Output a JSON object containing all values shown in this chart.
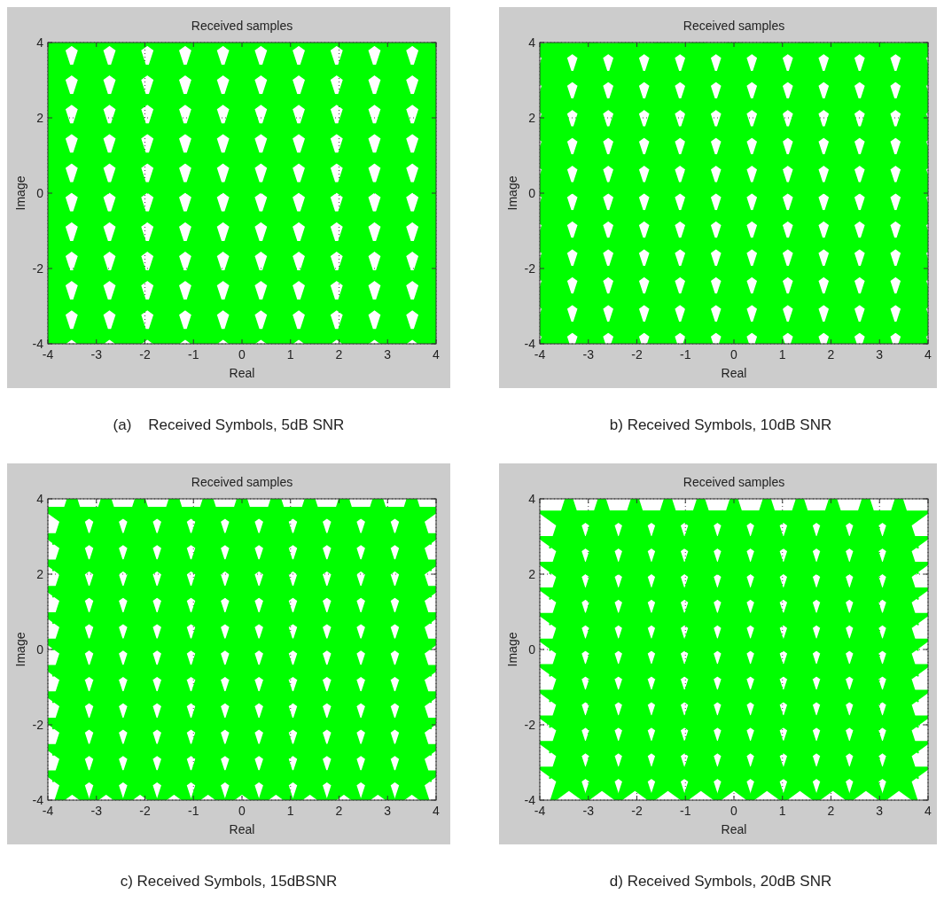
{
  "chart_data": [
    {
      "type": "scatter",
      "title": "Received samples",
      "xlabel": "Real",
      "ylabel": "Image",
      "xlim": [
        -4,
        4
      ],
      "ylim": [
        -4,
        4
      ],
      "xticks": [
        -4,
        -3,
        -2,
        -1,
        0,
        1,
        2,
        3,
        4
      ],
      "yticks": [
        -4,
        -2,
        0,
        2,
        4
      ],
      "grid": true,
      "marker": "star",
      "annotations": [
        "(a)    Received Symbols, 5dB SNR"
      ],
      "series": [
        {
          "color": "#00ff00",
          "x": [
            -3.9,
            -3.12,
            -2.34,
            -1.56,
            -0.78,
            0,
            0.78,
            1.56,
            2.34,
            3.12,
            3.9,
            -3.9,
            -3.12,
            -2.34,
            -1.56,
            -0.78,
            0,
            0.78,
            1.56,
            2.34,
            3.12,
            3.9,
            -3.9,
            -3.12,
            -2.34,
            -1.56,
            -0.78,
            0,
            0.78,
            1.56,
            2.34,
            3.12,
            3.9,
            -3.9,
            -3.12,
            -2.34,
            -1.56,
            -0.78,
            0,
            0.78,
            1.56,
            2.34,
            3.12,
            3.9,
            -3.9,
            -3.12,
            -2.34,
            -1.56,
            -0.78,
            0,
            0.78,
            1.56,
            2.34,
            3.12,
            3.9,
            -3.9,
            -3.12,
            -2.34,
            -1.56,
            -0.78,
            0,
            0.78,
            1.56,
            2.34,
            3.12,
            3.9,
            -3.9,
            -3.12,
            -2.34,
            -1.56,
            -0.78,
            0,
            0.78,
            1.56,
            2.34,
            3.12,
            3.9,
            -3.9,
            -3.12,
            -2.34,
            -1.56,
            -0.78,
            0,
            0.78,
            1.56,
            2.34,
            3.12,
            3.9,
            -3.9,
            -3.12,
            -2.34,
            -1.56,
            -0.78,
            0,
            0.78,
            1.56,
            2.34,
            3.12,
            3.9,
            -3.9,
            -3.12,
            -2.34,
            -1.56,
            -0.78,
            0,
            0.78,
            1.56,
            2.34,
            3.12,
            3.9,
            -3.9,
            -3.12,
            -2.34,
            -1.56,
            -0.78,
            0,
            0.78,
            1.56,
            2.34,
            3.12,
            3.9
          ],
          "values": [
            -3.9,
            -3.9,
            -3.9,
            -3.9,
            -3.9,
            -3.9,
            -3.9,
            -3.9,
            -3.9,
            -3.9,
            -3.9,
            -3.12,
            -3.12,
            -3.12,
            -3.12,
            -3.12,
            -3.12,
            -3.12,
            -3.12,
            -3.12,
            -3.12,
            -3.12,
            -2.34,
            -2.34,
            -2.34,
            -2.34,
            -2.34,
            -2.34,
            -2.34,
            -2.34,
            -2.34,
            -2.34,
            -2.34,
            -1.56,
            -1.56,
            -1.56,
            -1.56,
            -1.56,
            -1.56,
            -1.56,
            -1.56,
            -1.56,
            -1.56,
            -1.56,
            -0.78,
            -0.78,
            -0.78,
            -0.78,
            -0.78,
            -0.78,
            -0.78,
            -0.78,
            -0.78,
            -0.78,
            -0.78,
            0,
            0,
            0,
            0,
            0,
            0,
            0,
            0,
            0,
            0,
            0,
            0.78,
            0.78,
            0.78,
            0.78,
            0.78,
            0.78,
            0.78,
            0.78,
            0.78,
            0.78,
            0.78,
            1.56,
            1.56,
            1.56,
            1.56,
            1.56,
            1.56,
            1.56,
            1.56,
            1.56,
            1.56,
            1.56,
            2.34,
            2.34,
            2.34,
            2.34,
            2.34,
            2.34,
            2.34,
            2.34,
            2.34,
            2.34,
            2.34,
            3.12,
            3.12,
            3.12,
            3.12,
            3.12,
            3.12,
            3.12,
            3.12,
            3.12,
            3.12,
            3.12,
            3.9,
            3.9,
            3.9,
            3.9,
            3.9,
            3.9,
            3.9,
            3.9,
            3.9,
            3.9,
            3.9
          ]
        }
      ]
    },
    {
      "type": "scatter",
      "title": "Received samples",
      "xlabel": "Real",
      "ylabel": "Image",
      "xlim": [
        -4,
        4
      ],
      "ylim": [
        -4,
        4
      ],
      "xticks": [
        -4,
        -3,
        -2,
        -1,
        0,
        1,
        2,
        3,
        4
      ],
      "yticks": [
        -4,
        -2,
        0,
        2,
        4
      ],
      "grid": true,
      "marker": "star",
      "annotations": [
        "b) Received Symbols, 10dB SNR"
      ],
      "series": [
        {
          "color": "#00ff00",
          "x": [
            -3.7,
            -2.96,
            -2.22,
            -1.48,
            -0.74,
            0,
            0.74,
            1.48,
            2.22,
            2.96,
            3.7,
            -3.7,
            -2.96,
            -2.22,
            -1.48,
            -0.74,
            0,
            0.74,
            1.48,
            2.22,
            2.96,
            3.7,
            -3.7,
            -2.96,
            -2.22,
            -1.48,
            -0.74,
            0,
            0.74,
            1.48,
            2.22,
            2.96,
            3.7,
            -3.7,
            -2.96,
            -2.22,
            -1.48,
            -0.74,
            0,
            0.74,
            1.48,
            2.22,
            2.96,
            3.7,
            -3.7,
            -2.96,
            -2.22,
            -1.48,
            -0.74,
            0,
            0.74,
            1.48,
            2.22,
            2.96,
            3.7,
            -3.7,
            -2.96,
            -2.22,
            -1.48,
            -0.74,
            0,
            0.74,
            1.48,
            2.22,
            2.96,
            3.7,
            -3.7,
            -2.96,
            -2.22,
            -1.48,
            -0.74,
            0,
            0.74,
            1.48,
            2.22,
            2.96,
            3.7,
            -3.7,
            -2.96,
            -2.22,
            -1.48,
            -0.74,
            0,
            0.74,
            1.48,
            2.22,
            2.96,
            3.7,
            -3.7,
            -2.96,
            -2.22,
            -1.48,
            -0.74,
            0,
            0.74,
            1.48,
            2.22,
            2.96,
            3.7,
            -3.7,
            -2.96,
            -2.22,
            -1.48,
            -0.74,
            0,
            0.74,
            1.48,
            2.22,
            2.96,
            3.7,
            -3.7,
            -2.96,
            -2.22,
            -1.48,
            -0.74,
            0,
            0.74,
            1.48,
            2.22,
            2.96,
            3.7
          ],
          "values": [
            -3.7,
            -3.7,
            -3.7,
            -3.7,
            -3.7,
            -3.7,
            -3.7,
            -3.7,
            -3.7,
            -3.7,
            -3.7,
            -2.96,
            -2.96,
            -2.96,
            -2.96,
            -2.96,
            -2.96,
            -2.96,
            -2.96,
            -2.96,
            -2.96,
            -2.96,
            -2.22,
            -2.22,
            -2.22,
            -2.22,
            -2.22,
            -2.22,
            -2.22,
            -2.22,
            -2.22,
            -2.22,
            -2.22,
            -1.48,
            -1.48,
            -1.48,
            -1.48,
            -1.48,
            -1.48,
            -1.48,
            -1.48,
            -1.48,
            -1.48,
            -1.48,
            -0.74,
            -0.74,
            -0.74,
            -0.74,
            -0.74,
            -0.74,
            -0.74,
            -0.74,
            -0.74,
            -0.74,
            -0.74,
            0,
            0,
            0,
            0,
            0,
            0,
            0,
            0,
            0,
            0,
            0,
            0.74,
            0.74,
            0.74,
            0.74,
            0.74,
            0.74,
            0.74,
            0.74,
            0.74,
            0.74,
            0.74,
            1.48,
            1.48,
            1.48,
            1.48,
            1.48,
            1.48,
            1.48,
            1.48,
            1.48,
            1.48,
            1.48,
            2.22,
            2.22,
            2.22,
            2.22,
            2.22,
            2.22,
            2.22,
            2.22,
            2.22,
            2.22,
            2.22,
            2.96,
            2.96,
            2.96,
            2.96,
            2.96,
            2.96,
            2.96,
            2.96,
            2.96,
            2.96,
            2.96,
            3.7,
            3.7,
            3.7,
            3.7,
            3.7,
            3.7,
            3.7,
            3.7,
            3.7,
            3.7,
            3.7
          ]
        }
      ]
    },
    {
      "type": "scatter",
      "title": "Received samples",
      "xlabel": "Real",
      "ylabel": "Image",
      "xlim": [
        -4,
        4
      ],
      "ylim": [
        -4,
        4
      ],
      "xticks": [
        -4,
        -3,
        -2,
        -1,
        0,
        1,
        2,
        3,
        4
      ],
      "yticks": [
        -4,
        -2,
        0,
        2,
        4
      ],
      "grid": true,
      "marker": "star",
      "annotations": [
        "c) Received Symbols, 15dBSNR"
      ],
      "series": [
        {
          "color": "#00ff00",
          "x": [
            -3.5,
            -2.8,
            -2.1,
            -1.4,
            -0.7,
            0,
            0.7,
            1.4,
            2.1,
            2.8,
            3.5,
            -3.5,
            -2.8,
            -2.1,
            -1.4,
            -0.7,
            0,
            0.7,
            1.4,
            2.1,
            2.8,
            3.5,
            -3.5,
            -2.8,
            -2.1,
            -1.4,
            -0.7,
            0,
            0.7,
            1.4,
            2.1,
            2.8,
            3.5,
            -3.5,
            -2.8,
            -2.1,
            -1.4,
            -0.7,
            0,
            0.7,
            1.4,
            2.1,
            2.8,
            3.5,
            -3.5,
            -2.8,
            -2.1,
            -1.4,
            -0.7,
            0,
            0.7,
            1.4,
            2.1,
            2.8,
            3.5,
            -3.5,
            -2.8,
            -2.1,
            -1.4,
            -0.7,
            0,
            0.7,
            1.4,
            2.1,
            2.8,
            3.5,
            -3.5,
            -2.8,
            -2.1,
            -1.4,
            -0.7,
            0,
            0.7,
            1.4,
            2.1,
            2.8,
            3.5,
            -3.5,
            -2.8,
            -2.1,
            -1.4,
            -0.7,
            0,
            0.7,
            1.4,
            2.1,
            2.8,
            3.5,
            -3.5,
            -2.8,
            -2.1,
            -1.4,
            -0.7,
            0,
            0.7,
            1.4,
            2.1,
            2.8,
            3.5,
            -3.5,
            -2.8,
            -2.1,
            -1.4,
            -0.7,
            0,
            0.7,
            1.4,
            2.1,
            2.8,
            3.5,
            -3.5,
            -2.8,
            -2.1,
            -1.4,
            -0.7,
            0,
            0.7,
            1.4,
            2.1,
            2.8,
            3.5
          ],
          "values": [
            -3.5,
            -3.5,
            -3.5,
            -3.5,
            -3.5,
            -3.5,
            -3.5,
            -3.5,
            -3.5,
            -3.5,
            -3.5,
            -2.8,
            -2.8,
            -2.8,
            -2.8,
            -2.8,
            -2.8,
            -2.8,
            -2.8,
            -2.8,
            -2.8,
            -2.8,
            -2.1,
            -2.1,
            -2.1,
            -2.1,
            -2.1,
            -2.1,
            -2.1,
            -2.1,
            -2.1,
            -2.1,
            -2.1,
            -1.4,
            -1.4,
            -1.4,
            -1.4,
            -1.4,
            -1.4,
            -1.4,
            -1.4,
            -1.4,
            -1.4,
            -1.4,
            -0.7,
            -0.7,
            -0.7,
            -0.7,
            -0.7,
            -0.7,
            -0.7,
            -0.7,
            -0.7,
            -0.7,
            -0.7,
            0,
            0,
            0,
            0,
            0,
            0,
            0,
            0,
            0,
            0,
            0,
            0.7,
            0.7,
            0.7,
            0.7,
            0.7,
            0.7,
            0.7,
            0.7,
            0.7,
            0.7,
            0.7,
            1.4,
            1.4,
            1.4,
            1.4,
            1.4,
            1.4,
            1.4,
            1.4,
            1.4,
            1.4,
            1.4,
            2.1,
            2.1,
            2.1,
            2.1,
            2.1,
            2.1,
            2.1,
            2.1,
            2.1,
            2.1,
            2.1,
            2.8,
            2.8,
            2.8,
            2.8,
            2.8,
            2.8,
            2.8,
            2.8,
            2.8,
            2.8,
            2.8,
            3.5,
            3.5,
            3.5,
            3.5,
            3.5,
            3.5,
            3.5,
            3.5,
            3.5,
            3.5,
            3.5
          ]
        }
      ]
    },
    {
      "type": "scatter",
      "title": "Received samples",
      "xlabel": "Real",
      "ylabel": "Image",
      "xlim": [
        -4,
        4
      ],
      "ylim": [
        -4,
        4
      ],
      "xticks": [
        -4,
        -3,
        -2,
        -1,
        0,
        1,
        2,
        3,
        4
      ],
      "yticks": [
        -4,
        -2,
        0,
        2,
        4
      ],
      "grid": true,
      "marker": "star",
      "annotations": [
        "d) Received Symbols, 20dB SNR"
      ],
      "series": [
        {
          "color": "#00ff00",
          "x": [
            -3.4,
            -2.72,
            -2.04,
            -1.36,
            -0.68,
            0,
            0.68,
            1.36,
            2.04,
            2.72,
            3.4,
            -3.4,
            -2.72,
            -2.04,
            -1.36,
            -0.68,
            0,
            0.68,
            1.36,
            2.04,
            2.72,
            3.4,
            -3.4,
            -2.72,
            -2.04,
            -1.36,
            -0.68,
            0,
            0.68,
            1.36,
            2.04,
            2.72,
            3.4,
            -3.4,
            -2.72,
            -2.04,
            -1.36,
            -0.68,
            0,
            0.68,
            1.36,
            2.04,
            2.72,
            3.4,
            -3.4,
            -2.72,
            -2.04,
            -1.36,
            -0.68,
            0,
            0.68,
            1.36,
            2.04,
            2.72,
            3.4,
            -3.4,
            -2.72,
            -2.04,
            -1.36,
            -0.68,
            0,
            0.68,
            1.36,
            2.04,
            2.72,
            3.4,
            -3.4,
            -2.72,
            -2.04,
            -1.36,
            -0.68,
            0,
            0.68,
            1.36,
            2.04,
            2.72,
            3.4,
            -3.4,
            -2.72,
            -2.04,
            -1.36,
            -0.68,
            0,
            0.68,
            1.36,
            2.04,
            2.72,
            3.4,
            -3.4,
            -2.72,
            -2.04,
            -1.36,
            -0.68,
            0,
            0.68,
            1.36,
            2.04,
            2.72,
            3.4,
            -3.4,
            -2.72,
            -2.04,
            -1.36,
            -0.68,
            0,
            0.68,
            1.36,
            2.04,
            2.72,
            3.4,
            -3.4,
            -2.72,
            -2.04,
            -1.36,
            -0.68,
            0,
            0.68,
            1.36,
            2.04,
            2.72,
            3.4
          ],
          "values": [
            -3.4,
            -3.4,
            -3.4,
            -3.4,
            -3.4,
            -3.4,
            -3.4,
            -3.4,
            -3.4,
            -3.4,
            -3.4,
            -2.72,
            -2.72,
            -2.72,
            -2.72,
            -2.72,
            -2.72,
            -2.72,
            -2.72,
            -2.72,
            -2.72,
            -2.72,
            -2.04,
            -2.04,
            -2.04,
            -2.04,
            -2.04,
            -2.04,
            -2.04,
            -2.04,
            -2.04,
            -2.04,
            -2.04,
            -1.36,
            -1.36,
            -1.36,
            -1.36,
            -1.36,
            -1.36,
            -1.36,
            -1.36,
            -1.36,
            -1.36,
            -1.36,
            -0.68,
            -0.68,
            -0.68,
            -0.68,
            -0.68,
            -0.68,
            -0.68,
            -0.68,
            -0.68,
            -0.68,
            -0.68,
            0,
            0,
            0,
            0,
            0,
            0,
            0,
            0,
            0,
            0,
            0,
            0.68,
            0.68,
            0.68,
            0.68,
            0.68,
            0.68,
            0.68,
            0.68,
            0.68,
            0.68,
            0.68,
            1.36,
            1.36,
            1.36,
            1.36,
            1.36,
            1.36,
            1.36,
            1.36,
            1.36,
            1.36,
            1.36,
            2.04,
            2.04,
            2.04,
            2.04,
            2.04,
            2.04,
            2.04,
            2.04,
            2.04,
            2.04,
            2.04,
            2.72,
            2.72,
            2.72,
            2.72,
            2.72,
            2.72,
            2.72,
            2.72,
            2.72,
            2.72,
            2.72,
            3.4,
            3.4,
            3.4,
            3.4,
            3.4,
            3.4,
            3.4,
            3.4,
            3.4,
            3.4,
            3.4
          ]
        }
      ]
    }
  ]
}
